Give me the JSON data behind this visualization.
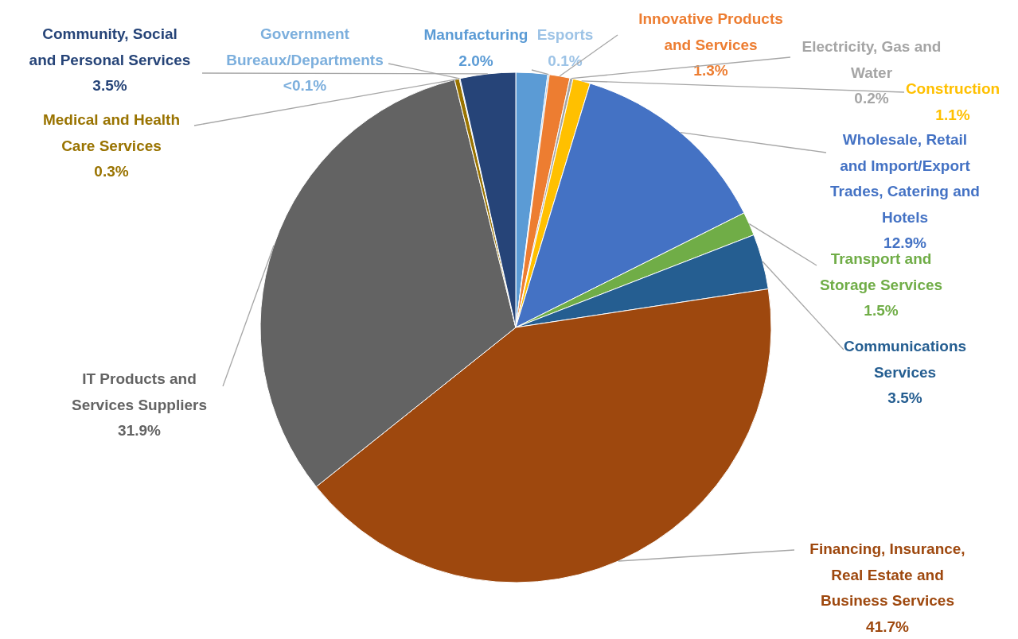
{
  "chart_data": {
    "type": "pie",
    "categories": [
      "Manufacturing",
      "Esports",
      "Innovative Products and Services",
      "Electricity, Gas and Water",
      "Construction",
      "Wholesale, Retail and Import/Export Trades, Catering and Hotels",
      "Transport and Storage Services",
      "Communications Services",
      "Financing, Insurance, Real Estate and Business Services",
      "IT Products and Services Suppliers",
      "Medical and Health Care Services",
      "Government Bureaux/Departments",
      "Community, Social and Personal Services"
    ],
    "values": [
      2.0,
      0.1,
      1.3,
      0.2,
      1.1,
      12.9,
      1.5,
      3.5,
      41.7,
      31.9,
      0.3,
      0.05,
      3.5
    ],
    "value_labels": [
      "2.0%",
      "0.1%",
      "1.3%",
      "0.2%",
      "1.1%",
      "12.9%",
      "1.5%",
      "3.5%",
      "41.7%",
      "31.9%",
      "0.3%",
      "<0.1%",
      "3.5%"
    ],
    "colors": [
      "#5b9bd5",
      "#9dc3e6",
      "#ed7d31",
      "#a5a5a5",
      "#ffc000",
      "#4472c4",
      "#70ad47",
      "#255e91",
      "#9e480e",
      "#636363",
      "#997300",
      "#7cafdd",
      "#264478"
    ]
  }
}
